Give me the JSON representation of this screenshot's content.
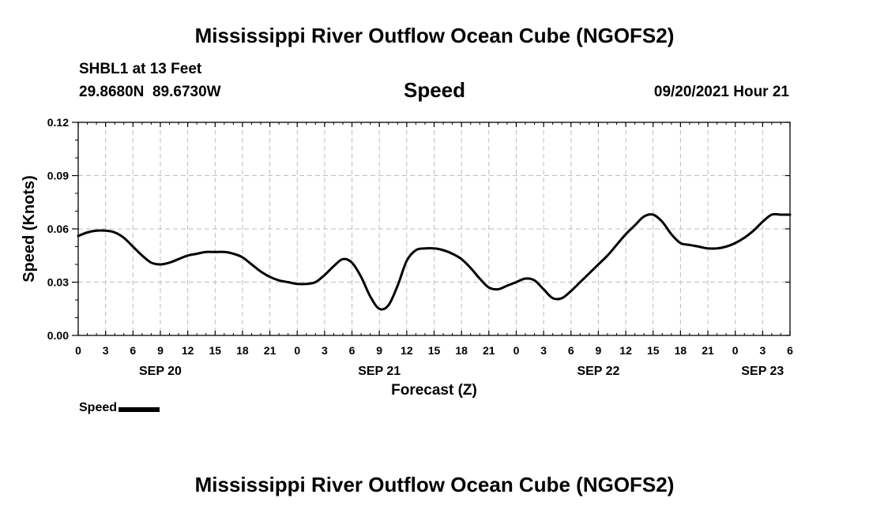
{
  "header": {
    "title": "Mississippi River Outflow Ocean Cube (NGOFS2)",
    "station_name": "SHBL1 at 13 Feet",
    "station_coords": "29.8680N  89.6730W",
    "variable": "Speed",
    "forecast_time": "09/20/2021 Hour 21"
  },
  "footer": {
    "title": "Mississippi River Outflow Ocean Cube (NGOFS2)"
  },
  "legend": {
    "label": "Speed"
  },
  "chart_data": {
    "type": "line",
    "title": "Speed",
    "ylabel": "Speed (Knots)",
    "xlabel": "Forecast (Z)",
    "ylim": [
      0,
      0.12
    ],
    "yticks": [
      0.0,
      0.03,
      0.06,
      0.09,
      0.12
    ],
    "ytick_labels": [
      "0.00",
      "0.03",
      "0.06",
      "0.09",
      "0.12"
    ],
    "x_unit": "hours since 09/20/2021 00Z",
    "xlim": [
      0,
      78
    ],
    "xticks": [
      0,
      3,
      6,
      9,
      12,
      15,
      18,
      21,
      24,
      27,
      30,
      33,
      36,
      39,
      42,
      45,
      48,
      51,
      54,
      57,
      60,
      63,
      66,
      69,
      72,
      75,
      78
    ],
    "xtick_labels": [
      "0",
      "3",
      "6",
      "9",
      "12",
      "15",
      "18",
      "21",
      "0",
      "3",
      "6",
      "9",
      "12",
      "15",
      "18",
      "21",
      "0",
      "3",
      "6",
      "9",
      "12",
      "15",
      "18",
      "21",
      "0",
      "3",
      "6"
    ],
    "date_labels": [
      {
        "x": 9,
        "label": "SEP 20"
      },
      {
        "x": 33,
        "label": "SEP 21"
      },
      {
        "x": 57,
        "label": "SEP 22"
      },
      {
        "x": 75,
        "label": "SEP 23"
      }
    ],
    "grid": true,
    "series": [
      {
        "name": "Speed",
        "color": "#000000",
        "x": [
          0,
          1,
          2,
          3,
          4,
          5,
          6,
          7,
          8,
          9,
          10,
          11,
          12,
          13,
          14,
          15,
          16,
          17,
          18,
          19,
          20,
          21,
          22,
          23,
          24,
          25,
          26,
          27,
          28,
          29,
          30,
          31,
          32,
          33,
          34,
          35,
          36,
          37,
          38,
          39,
          40,
          41,
          42,
          43,
          44,
          45,
          46,
          47,
          48,
          49,
          50,
          51,
          52,
          53,
          54,
          55,
          56,
          57,
          58,
          59,
          60,
          61,
          62,
          63,
          64,
          65,
          66,
          67,
          68,
          69,
          70,
          71,
          72,
          73,
          74,
          75,
          76,
          77,
          78
        ],
        "values": [
          0.056,
          0.058,
          0.059,
          0.059,
          0.058,
          0.055,
          0.05,
          0.045,
          0.041,
          0.04,
          0.041,
          0.043,
          0.045,
          0.046,
          0.047,
          0.047,
          0.047,
          0.046,
          0.044,
          0.04,
          0.036,
          0.033,
          0.031,
          0.03,
          0.029,
          0.029,
          0.03,
          0.034,
          0.039,
          0.043,
          0.041,
          0.033,
          0.022,
          0.015,
          0.017,
          0.028,
          0.042,
          0.048,
          0.049,
          0.049,
          0.048,
          0.046,
          0.043,
          0.038,
          0.032,
          0.027,
          0.026,
          0.028,
          0.03,
          0.032,
          0.031,
          0.026,
          0.021,
          0.021,
          0.025,
          0.03,
          0.035,
          0.04,
          0.045,
          0.051,
          0.057,
          0.062,
          0.067,
          0.068,
          0.064,
          0.057,
          0.052,
          0.051,
          0.05,
          0.049,
          0.049,
          0.05,
          0.052,
          0.055,
          0.059,
          0.064,
          0.068,
          0.068,
          0.068
        ]
      }
    ]
  }
}
